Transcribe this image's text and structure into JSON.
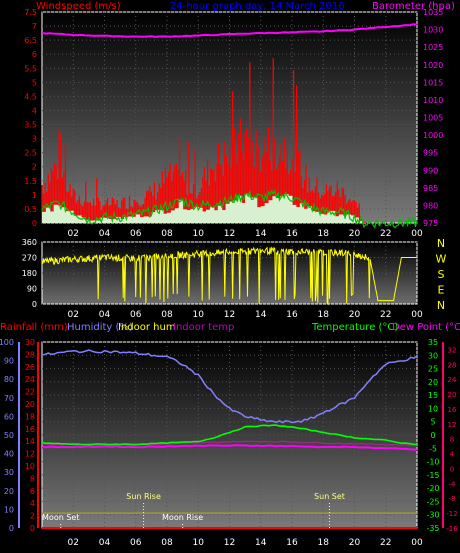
{
  "colors": {
    "wind": "#ff0000",
    "windAvg": "#00c000",
    "baro": "#ff00ff",
    "dir": "#ffff00",
    "rain": "#ff0000",
    "hum": "#8080ff",
    "inhum": "#ffff00",
    "intemp": "#ff00ff",
    "temp": "#00ff00",
    "dew": "#ff00ff",
    "tempAxis": "#ff0066",
    "grid": "#555555",
    "white": "#ffffff",
    "sun": "#ffff80"
  },
  "headers": {
    "windspeed": "Windspeed (m/s)",
    "title": "24-hour graph day, 14 March 2016",
    "barometer": "Barometer (hpa)",
    "rainfall": "Rainfall (mm)",
    "humidity": "Humidity (%)",
    "indoor_hum": "Indoor hum",
    "indoor_temp": "Indoor temp",
    "temperature": "Temperature (°C)",
    "dew_point": "Dew Point (°C)"
  },
  "compass": [
    "N",
    "W",
    "S",
    "E",
    "N"
  ],
  "events": {
    "sunrise": "Sun Rise",
    "sunset": "Sun Set",
    "moonset": "Moon Set",
    "moonrise": "Moon Rise"
  },
  "chart_data": [
    {
      "type": "bar",
      "title": "24-hour graph day, 14 March 2016",
      "x_ticks": [
        "02",
        "04",
        "06",
        "08",
        "10",
        "12",
        "14",
        "16",
        "18",
        "20",
        "22",
        "00"
      ],
      "left_axis": {
        "label": "Windspeed (m/s)",
        "ylim": [
          0,
          7.5
        ],
        "ticks": [
          "0",
          "0.5",
          "1",
          "1.5",
          "2",
          "2.5",
          "3",
          "3.5",
          "4",
          "4.5",
          "5",
          "5.5",
          "6",
          "6.5",
          "7",
          "7.5"
        ]
      },
      "right_axis": {
        "label": "Barometer (hpa)",
        "ylim": [
          975,
          1035
        ],
        "ticks": [
          "975",
          "980",
          "985",
          "990",
          "995",
          "1000",
          "1005",
          "1010",
          "1015",
          "1020",
          "1025",
          "1030",
          "1035"
        ]
      },
      "series": [
        {
          "key": "gust",
          "hours": [
            0,
            1,
            2,
            3,
            4,
            5,
            6,
            7,
            8,
            9,
            10,
            11,
            12,
            13,
            14,
            15,
            16,
            17,
            18,
            19,
            20,
            20.5,
            21,
            24
          ],
          "values": [
            1.6,
            2.4,
            1.1,
            0.9,
            0.8,
            0.8,
            1.0,
            1.2,
            1.9,
            1.8,
            1.5,
            2.5,
            2.8,
            3.5,
            3.0,
            3.3,
            3.1,
            1.7,
            1.3,
            1.4,
            0.9,
            0.05,
            0.0,
            0.0
          ]
        },
        {
          "key": "avg",
          "hours": [
            0,
            1,
            2,
            3,
            4,
            5,
            6,
            7,
            8,
            9,
            10,
            11,
            12,
            13,
            14,
            15,
            16,
            17,
            18,
            19,
            20,
            20.5,
            21,
            24
          ],
          "values": [
            0.5,
            0.7,
            0.4,
            0.1,
            0.2,
            0.2,
            0.3,
            0.4,
            0.6,
            0.8,
            0.6,
            0.7,
            0.8,
            1.0,
            0.9,
            1.0,
            0.9,
            0.6,
            0.4,
            0.4,
            0.2,
            0.0,
            0.0,
            0.0
          ]
        },
        {
          "key": "barometer",
          "hours": [
            0,
            2,
            4,
            6,
            8,
            10,
            12,
            14,
            16,
            18,
            20,
            22,
            24
          ],
          "values": [
            1029.0,
            1028.5,
            1028.2,
            1028.0,
            1028.0,
            1028.3,
            1028.7,
            1029.0,
            1029.2,
            1029.5,
            1030.0,
            1030.8,
            1031.5
          ]
        }
      ]
    },
    {
      "type": "line",
      "x_ticks": [
        "02",
        "04",
        "06",
        "08",
        "10",
        "12",
        "14",
        "16",
        "18",
        "20",
        "22",
        "00"
      ],
      "left_axis": {
        "ylim": [
          0,
          360
        ],
        "ticks": [
          "0",
          "90",
          "180",
          "270",
          "360"
        ]
      },
      "right_axis": {
        "ticks": [
          "N",
          "W",
          "S",
          "E",
          "N"
        ]
      },
      "series": [
        {
          "key": "direction",
          "hours": [
            0,
            2,
            4,
            6,
            8,
            10,
            12,
            14,
            16,
            18,
            20,
            21,
            21.5,
            22.5,
            23,
            24
          ],
          "values": [
            245,
            260,
            270,
            265,
            280,
            290,
            300,
            310,
            305,
            300,
            295,
            260,
            20,
            20,
            270,
            270
          ]
        }
      ]
    },
    {
      "type": "line",
      "x_ticks": [
        "02",
        "04",
        "06",
        "08",
        "10",
        "12",
        "14",
        "16",
        "18",
        "20",
        "22",
        "00"
      ],
      "axes": {
        "humidity": {
          "ylim": [
            0,
            100
          ],
          "ticks": [
            "0",
            "5",
            "10",
            "15",
            "20",
            "25",
            "30",
            "35",
            "40",
            "45",
            "50",
            "55",
            "60",
            "65",
            "70",
            "75",
            "80",
            "85",
            "90",
            "95",
            "100"
          ]
        },
        "rainfall": {
          "ylim": [
            0,
            30
          ],
          "ticks": [
            "0",
            "2",
            "4",
            "6",
            "8",
            "10",
            "12",
            "14",
            "16",
            "18",
            "20",
            "22",
            "24",
            "26",
            "28",
            "30"
          ]
        },
        "temperature": {
          "ylim": [
            -35,
            35
          ],
          "ticks": [
            "-35",
            "-30",
            "-25",
            "-20",
            "-15",
            "-10",
            "-5",
            "0",
            "5",
            "10",
            "15",
            "20",
            "25",
            "30",
            "35"
          ]
        },
        "dew_point": {
          "ylim": [
            -16,
            34
          ],
          "ticks": [
            "-16",
            "-14",
            "-12",
            "-10",
            "-8",
            "-6",
            "-4",
            "-2",
            "0",
            "2",
            "4",
            "6",
            "8",
            "10",
            "12",
            "14",
            "16",
            "18",
            "20",
            "22",
            "24",
            "26",
            "28",
            "30",
            "32",
            "34"
          ]
        }
      },
      "series": [
        {
          "key": "humidity",
          "hours": [
            0,
            2,
            4,
            6,
            7,
            8,
            9,
            10,
            11,
            12,
            13,
            14,
            15,
            16,
            17,
            18,
            19,
            20,
            21,
            22,
            23,
            24
          ],
          "values": [
            93,
            95,
            95,
            94,
            93,
            92,
            88,
            82,
            72,
            64,
            60,
            58,
            57,
            57,
            58,
            62,
            66,
            70,
            80,
            88,
            90,
            92
          ]
        },
        {
          "key": "temperature",
          "hours": [
            0,
            2,
            4,
            6,
            8,
            10,
            11,
            12,
            13,
            14,
            15,
            16,
            17,
            18,
            19,
            20,
            21,
            22,
            23,
            24
          ],
          "values": [
            -3,
            -3.5,
            -3.5,
            -3.5,
            -3,
            -2.5,
            -1,
            1,
            3,
            3.5,
            3.6,
            3,
            2,
            1,
            0,
            -1,
            -1.5,
            -2,
            -3,
            -3.5
          ]
        },
        {
          "key": "dew_point",
          "hours": [
            0,
            2,
            4,
            6,
            8,
            10,
            12,
            14,
            16,
            18,
            20,
            22,
            24
          ],
          "values": [
            -4.5,
            -4.5,
            -4.3,
            -4.5,
            -4.3,
            -4,
            -4,
            -4,
            -4.2,
            -4.5,
            -4.5,
            -5,
            -5.5
          ]
        },
        {
          "key": "indoor_temp",
          "hours": [
            0,
            2,
            4,
            6,
            8,
            10,
            12,
            14,
            16,
            18,
            20,
            22,
            24
          ],
          "values": [
            -3.2,
            -3.6,
            -3.7,
            -3.8,
            -3.4,
            -3.0,
            -2.5,
            -2.4,
            -2.6,
            -3.0,
            -3.3,
            -3.6,
            -3.8
          ]
        },
        {
          "key": "indoor_hum",
          "hours": [
            0,
            24
          ],
          "values": [
            8,
            8
          ]
        },
        {
          "key": "rainfall",
          "hours": [
            0,
            24
          ],
          "values": [
            0,
            0
          ]
        }
      ],
      "events": [
        {
          "key": "sunrise",
          "hour": 6.5
        },
        {
          "key": "sunset",
          "hour": 18.4
        },
        {
          "key": "moonset",
          "hour": 1.2
        },
        {
          "key": "moonrise",
          "hour": 9.0
        }
      ]
    }
  ]
}
